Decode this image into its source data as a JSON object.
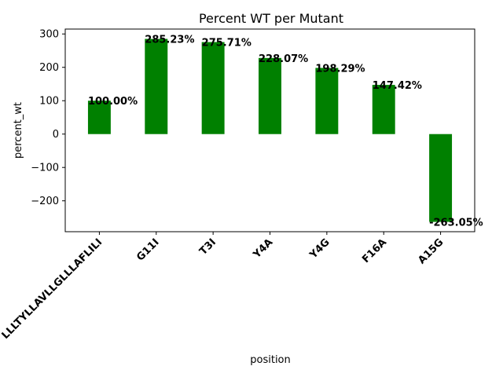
{
  "chart_data": {
    "type": "bar",
    "title": "Percent WT per Mutant",
    "xlabel": "position",
    "ylabel": "percent_wt",
    "categories": [
      "LLLTYLLAVLLGLLLAFLILI",
      "G11I",
      "T3I",
      "Y4A",
      "Y4G",
      "F16A",
      "A15G"
    ],
    "values": [
      100.0,
      285.23,
      275.71,
      228.07,
      198.29,
      147.42,
      -263.05
    ],
    "data_labels": [
      "100.00%",
      "285.23%",
      "275.71%",
      "228.07%",
      "198.29%",
      "147.42%",
      "-263.05%"
    ],
    "ylim": [
      -292.5,
      314.7
    ],
    "yticks": [
      -200,
      -100,
      0,
      100,
      200,
      300
    ],
    "ytick_labels": [
      "−200",
      "−100",
      "0",
      "100",
      "200",
      "300"
    ],
    "bar_color": "#008000",
    "grid": false,
    "legend": "none"
  }
}
